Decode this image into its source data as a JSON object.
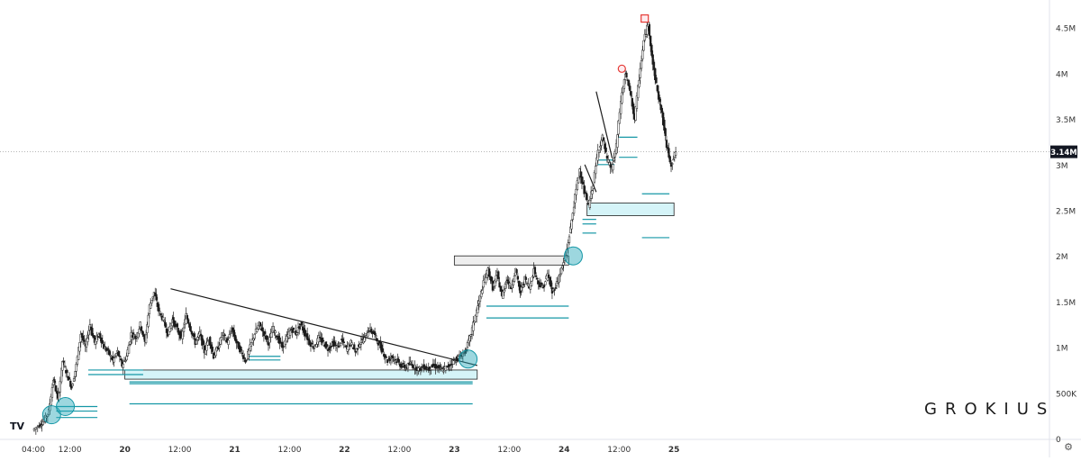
{
  "chart_data": {
    "type": "candlestick",
    "watermark": "GROKIUS",
    "logo_text": "TV",
    "last_price_label": "3.14M",
    "last_price": 3140000,
    "y_axis": {
      "ticks": [
        {
          "value": 0,
          "label": "0"
        },
        {
          "value": 500000,
          "label": "500K"
        },
        {
          "value": 1000000,
          "label": "1M"
        },
        {
          "value": 1500000,
          "label": "1.5M"
        },
        {
          "value": 2000000,
          "label": "2M"
        },
        {
          "value": 2500000,
          "label": "2.5M"
        },
        {
          "value": 3000000,
          "label": "3M"
        },
        {
          "value": 3500000,
          "label": "3.5M"
        },
        {
          "value": 4000000,
          "label": "4M"
        },
        {
          "value": 4500000,
          "label": "4.5M"
        }
      ],
      "range": [
        0,
        4600000
      ]
    },
    "x_axis": {
      "ticks": [
        {
          "hours": 4,
          "label": "04:00"
        },
        {
          "hours": 12,
          "label": "12:00"
        },
        {
          "hours": 24,
          "label": "20"
        },
        {
          "hours": 36,
          "label": "12:00"
        },
        {
          "hours": 48,
          "label": "21"
        },
        {
          "hours": 60,
          "label": "12:00"
        },
        {
          "hours": 72,
          "label": "22"
        },
        {
          "hours": 84,
          "label": "12:00"
        },
        {
          "hours": 96,
          "label": "23"
        },
        {
          "hours": 108,
          "label": "12:00"
        },
        {
          "hours": 120,
          "label": "24"
        },
        {
          "hours": 132,
          "label": "12:00"
        },
        {
          "hours": 144,
          "label": "25"
        }
      ],
      "range": [
        0,
        146
      ]
    },
    "price_path": [
      [
        4.0,
        90000
      ],
      [
        5.5,
        150000
      ],
      [
        6.5,
        200000
      ],
      [
        7.5,
        300000
      ],
      [
        8.5,
        650000
      ],
      [
        9.5,
        420000
      ],
      [
        10.5,
        850000
      ],
      [
        11.5,
        700000
      ],
      [
        12.5,
        560000
      ],
      [
        13.5,
        800000
      ],
      [
        14.5,
        1150000
      ],
      [
        15.5,
        1000000
      ],
      [
        16.5,
        1250000
      ],
      [
        17.5,
        1050000
      ],
      [
        18.5,
        1150000
      ],
      [
        19.5,
        1000000
      ],
      [
        20.5,
        950000
      ],
      [
        21.5,
        850000
      ],
      [
        22.5,
        950000
      ],
      [
        23.5,
        800000
      ],
      [
        24.5,
        900000
      ],
      [
        25.5,
        1150000
      ],
      [
        26.5,
        1100000
      ],
      [
        27.5,
        1250000
      ],
      [
        28.5,
        1050000
      ],
      [
        29.5,
        1450000
      ],
      [
        30.5,
        1600000
      ],
      [
        31.5,
        1400000
      ],
      [
        32.5,
        1300000
      ],
      [
        33.5,
        1150000
      ],
      [
        34.5,
        1300000
      ],
      [
        35.5,
        1200000
      ],
      [
        36.5,
        1100000
      ],
      [
        37.5,
        1350000
      ],
      [
        38.5,
        1200000
      ],
      [
        39.5,
        1050000
      ],
      [
        40.5,
        1150000
      ],
      [
        41.5,
        950000
      ],
      [
        42.5,
        1100000
      ],
      [
        43.5,
        900000
      ],
      [
        44.5,
        1000000
      ],
      [
        45.5,
        1150000
      ],
      [
        46.5,
        1050000
      ],
      [
        47.5,
        1200000
      ],
      [
        48.5,
        1050000
      ],
      [
        49.5,
        950000
      ],
      [
        50.5,
        850000
      ],
      [
        51.5,
        1000000
      ],
      [
        52.5,
        1150000
      ],
      [
        53.5,
        1250000
      ],
      [
        54.5,
        1150000
      ],
      [
        55.5,
        1050000
      ],
      [
        56.5,
        1200000
      ],
      [
        57.5,
        1100000
      ],
      [
        58.5,
        1000000
      ],
      [
        59.5,
        1100000
      ],
      [
        60.5,
        1200000
      ],
      [
        61.5,
        1150000
      ],
      [
        62.5,
        1250000
      ],
      [
        63.5,
        1150000
      ],
      [
        64.5,
        1050000
      ],
      [
        65.5,
        1000000
      ],
      [
        66.5,
        1100000
      ],
      [
        67.5,
        1050000
      ],
      [
        68.5,
        980000
      ],
      [
        69.5,
        1050000
      ],
      [
        70.5,
        1000000
      ],
      [
        71.5,
        1080000
      ],
      [
        72.5,
        980000
      ],
      [
        73.5,
        1050000
      ],
      [
        74.5,
        950000
      ],
      [
        75.5,
        1050000
      ],
      [
        76.5,
        1100000
      ],
      [
        77.5,
        1200000
      ],
      [
        78.5,
        1150000
      ],
      [
        79.5,
        1050000
      ],
      [
        80.5,
        950000
      ],
      [
        81.5,
        850000
      ],
      [
        82.5,
        900000
      ],
      [
        83.5,
        850000
      ],
      [
        84.5,
        800000
      ],
      [
        85.5,
        780000
      ],
      [
        86.5,
        820000
      ],
      [
        87.5,
        780000
      ],
      [
        88.5,
        760000
      ],
      [
        89.5,
        790000
      ],
      [
        90.5,
        760000
      ],
      [
        91.5,
        800000
      ],
      [
        92.5,
        780000
      ],
      [
        93.5,
        750000
      ],
      [
        94.5,
        780000
      ],
      [
        95.5,
        830000
      ],
      [
        96.5,
        870000
      ],
      [
        97.5,
        900000
      ],
      [
        98.5,
        950000
      ],
      [
        99.5,
        1100000
      ],
      [
        100.5,
        1300000
      ],
      [
        101.5,
        1500000
      ],
      [
        102.5,
        1700000
      ],
      [
        103.5,
        1850000
      ],
      [
        104.5,
        1650000
      ],
      [
        105.5,
        1800000
      ],
      [
        106.5,
        1550000
      ],
      [
        107.5,
        1750000
      ],
      [
        108.5,
        1650000
      ],
      [
        109.5,
        1850000
      ],
      [
        110.5,
        1600000
      ],
      [
        111.5,
        1750000
      ],
      [
        112.5,
        1650000
      ],
      [
        113.5,
        1850000
      ],
      [
        114.5,
        1700000
      ],
      [
        115.5,
        1650000
      ],
      [
        116.5,
        1800000
      ],
      [
        117.5,
        1600000
      ],
      [
        118.5,
        1700000
      ],
      [
        119.5,
        1850000
      ],
      [
        120.5,
        2000000
      ],
      [
        121.5,
        2300000
      ],
      [
        122.5,
        2650000
      ],
      [
        123.5,
        2950000
      ],
      [
        124.5,
        2700000
      ],
      [
        125.5,
        2550000
      ],
      [
        126.5,
        2800000
      ],
      [
        127.5,
        3150000
      ],
      [
        128.5,
        3300000
      ],
      [
        129.5,
        3050000
      ],
      [
        130.5,
        2950000
      ],
      [
        131.5,
        3200000
      ],
      [
        132.5,
        3700000
      ],
      [
        133.5,
        4000000
      ],
      [
        134.5,
        3800000
      ],
      [
        135.5,
        3500000
      ],
      [
        136.5,
        3950000
      ],
      [
        137.5,
        4350000
      ],
      [
        138.5,
        4550000
      ],
      [
        139.5,
        4100000
      ],
      [
        140.5,
        3800000
      ],
      [
        141.5,
        3550000
      ],
      [
        142.5,
        3200000
      ],
      [
        143.5,
        3000000
      ],
      [
        144.5,
        3140000
      ]
    ],
    "drawings": {
      "trendlines": [
        {
          "from": [
            34,
            1640000
          ],
          "to": [
            101,
            800000
          ]
        },
        {
          "from": [
            127,
            3800000
          ],
          "to": [
            130.5,
            3070000
          ]
        },
        {
          "from": [
            124.5,
            3000000
          ],
          "to": [
            127,
            2700000
          ]
        }
      ],
      "zones": [
        {
          "x": [
            24,
            101
          ],
          "y": [
            750000,
            650000
          ],
          "color": "#b2ebf2"
        },
        {
          "x": [
            96,
            121
          ],
          "y": [
            2000000,
            1900000
          ],
          "color": "#e0e0e0"
        },
        {
          "x": [
            125,
            144
          ],
          "y": [
            2580000,
            2440000
          ],
          "color": "#b2ebf2"
        }
      ],
      "levels": [
        {
          "x": [
            9,
            18
          ],
          "y": 350000
        },
        {
          "x": [
            9,
            18
          ],
          "y": 300000
        },
        {
          "x": [
            9,
            18
          ],
          "y": 230000
        },
        {
          "x": [
            16,
            28
          ],
          "y": 750000
        },
        {
          "x": [
            16,
            28
          ],
          "y": 700000
        },
        {
          "x": [
            25,
            100
          ],
          "y": 620000
        },
        {
          "x": [
            25,
            100
          ],
          "y": 600000
        },
        {
          "x": [
            25,
            100
          ],
          "y": 380000
        },
        {
          "x": [
            51,
            58
          ],
          "y": 900000
        },
        {
          "x": [
            51,
            58
          ],
          "y": 860000
        },
        {
          "x": [
            103,
            121
          ],
          "y": 1450000
        },
        {
          "x": [
            103,
            121
          ],
          "y": 1320000
        },
        {
          "x": [
            127,
            131
          ],
          "y": 3050000
        },
        {
          "x": [
            127,
            131
          ],
          "y": 3000000
        },
        {
          "x": [
            132,
            136
          ],
          "y": 3300000
        },
        {
          "x": [
            132,
            136
          ],
          "y": 3080000
        },
        {
          "x": [
            124,
            127
          ],
          "y": 2400000
        },
        {
          "x": [
            124,
            127
          ],
          "y": 2350000
        },
        {
          "x": [
            124,
            127
          ],
          "y": 2250000
        },
        {
          "x": [
            137,
            143
          ],
          "y": 2680000
        },
        {
          "x": [
            137,
            143
          ],
          "y": 2200000
        }
      ],
      "circles": [
        {
          "at": [
            8,
            260000
          ]
        },
        {
          "at": [
            11,
            350000
          ]
        },
        {
          "at": [
            99,
            870000
          ]
        },
        {
          "at": [
            122,
            2000000
          ]
        }
      ],
      "red_markers": [
        {
          "at": [
            132.6,
            4050000
          ],
          "shape": "circle"
        },
        {
          "at": [
            137.6,
            4600000
          ],
          "shape": "square"
        }
      ]
    }
  }
}
